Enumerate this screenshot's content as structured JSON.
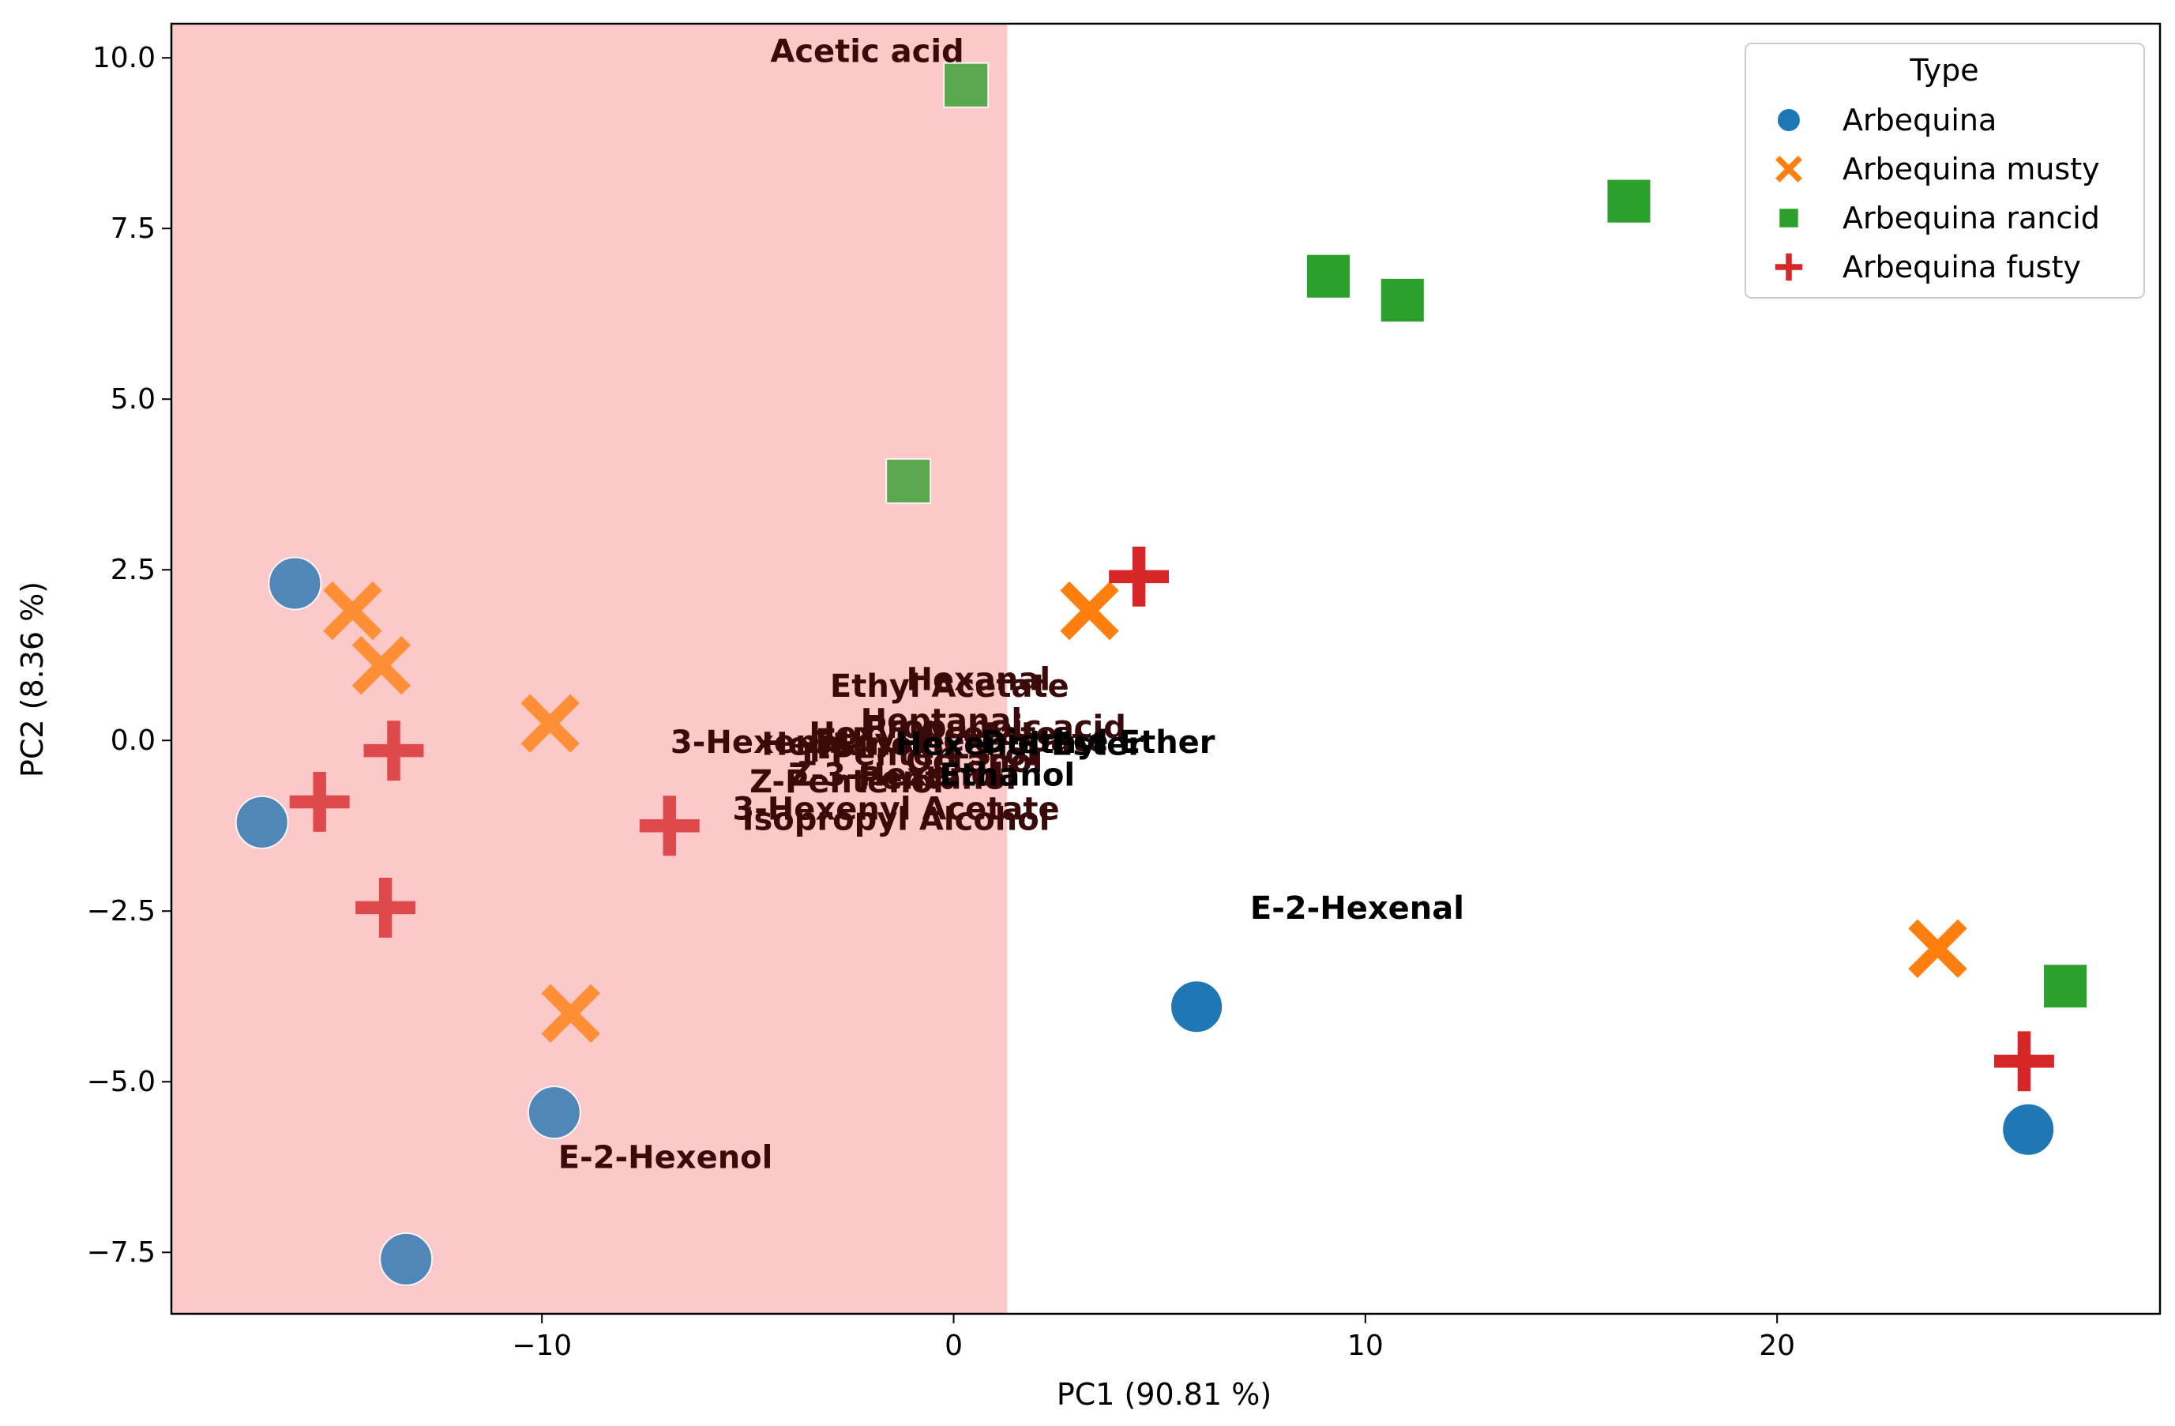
{
  "chart_data": {
    "type": "scatter",
    "title": "",
    "xlabel": "PC1 (90.81 %)",
    "ylabel": "PC2 (8.36 %)",
    "xlim": [
      -19,
      29.3
    ],
    "ylim": [
      -8.4,
      10.5
    ],
    "xticks": [
      {
        "value": -10,
        "label": "−10"
      },
      {
        "value": 0,
        "label": "0"
      },
      {
        "value": 10,
        "label": "10"
      },
      {
        "value": 20,
        "label": "20"
      }
    ],
    "yticks": [
      {
        "value": -7.5,
        "label": "−7.5"
      },
      {
        "value": -5.0,
        "label": "−5.0"
      },
      {
        "value": -2.5,
        "label": "−2.5"
      },
      {
        "value": 0.0,
        "label": "0.0"
      },
      {
        "value": 2.5,
        "label": "2.5"
      },
      {
        "value": 5.0,
        "label": "5.0"
      },
      {
        "value": 7.5,
        "label": "7.5"
      },
      {
        "value": 10.0,
        "label": "10.0"
      }
    ],
    "shaded_region": {
      "x_from": -19,
      "x_to": 1.3,
      "color": "#fbc9c9"
    },
    "legend": {
      "title": "Type",
      "position": "top-right"
    },
    "series": [
      {
        "name": "Arbequina",
        "marker": "circle",
        "color": "#1f77b4",
        "points": [
          {
            "x": -16.0,
            "y": 2.3
          },
          {
            "x": -16.8,
            "y": -1.2
          },
          {
            "x": -9.7,
            "y": -5.45
          },
          {
            "x": -13.3,
            "y": -7.6
          },
          {
            "x": 5.9,
            "y": -3.9
          },
          {
            "x": 26.1,
            "y": -5.7
          }
        ]
      },
      {
        "name": "Arbequina musty",
        "marker": "x",
        "color": "#ff7f0e",
        "points": [
          {
            "x": -14.6,
            "y": 1.9
          },
          {
            "x": -13.9,
            "y": 1.1
          },
          {
            "x": -9.8,
            "y": 0.25
          },
          {
            "x": -9.3,
            "y": -4.0
          },
          {
            "x": 3.3,
            "y": 1.9
          },
          {
            "x": 23.9,
            "y": -3.05
          }
        ]
      },
      {
        "name": "Arbequina rancid",
        "marker": "square",
        "color": "#2ca02c",
        "points": [
          {
            "x": 0.3,
            "y": 9.6
          },
          {
            "x": -1.1,
            "y": 3.8
          },
          {
            "x": 9.1,
            "y": 6.8
          },
          {
            "x": 10.9,
            "y": 6.45
          },
          {
            "x": 16.4,
            "y": 7.9
          },
          {
            "x": 27.0,
            "y": -3.6
          }
        ]
      },
      {
        "name": "Arbequina fusty",
        "marker": "plus",
        "color": "#d62728",
        "points": [
          {
            "x": -13.6,
            "y": -0.15
          },
          {
            "x": -15.4,
            "y": -0.9
          },
          {
            "x": -13.8,
            "y": -2.45
          },
          {
            "x": -6.9,
            "y": -1.25
          },
          {
            "x": 4.5,
            "y": 2.4
          },
          {
            "x": 26.0,
            "y": -4.7
          }
        ]
      }
    ],
    "annotations": [
      {
        "text": "Acetic acid",
        "x": -2.1,
        "y": 10.1
      },
      {
        "text": "Hexanal",
        "x": 0.6,
        "y": 0.9
      },
      {
        "text": "Ethyl Acetate",
        "x": -0.1,
        "y": 0.8
      },
      {
        "text": "Heptanal",
        "x": -0.3,
        "y": 0.3
      },
      {
        "text": "Hexyl Acetate",
        "x": -0.5,
        "y": 0.1
      },
      {
        "text": "Propanoic acid",
        "x": 1.0,
        "y": 0.2
      },
      {
        "text": "Ethyl Hexanoate",
        "x": 0.2,
        "y": 0.0
      },
      {
        "text": "3-Hexenal",
        "x": -4.7,
        "y": -0.02
      },
      {
        "text": "Heptanol",
        "x": -2.7,
        "y": -0.05
      },
      {
        "text": "1-Penten-3-ol",
        "x": -0.9,
        "y": -0.2
      },
      {
        "text": "Octanol",
        "x": 0.5,
        "y": -0.3
      },
      {
        "text": "Hexenol Ester",
        "x": 1.6,
        "y": -0.05
      },
      {
        "text": "Diethyl Ether",
        "x": 3.5,
        "y": -0.02
      },
      {
        "text": "Z-3-Hexenol",
        "x": -1.4,
        "y": -0.5
      },
      {
        "text": "Z-Pentenol",
        "x": -2.6,
        "y": -0.6
      },
      {
        "text": "Pentanol",
        "x": -0.4,
        "y": -0.55
      },
      {
        "text": "Ethanol",
        "x": 1.3,
        "y": -0.5
      },
      {
        "text": "3-Hexenyl Acetate",
        "x": -1.4,
        "y": -1.0
      },
      {
        "text": "Isopropyl Alcohol",
        "x": -1.4,
        "y": -1.15
      },
      {
        "text": "E-2-Hexenal",
        "x": 9.8,
        "y": -2.45
      },
      {
        "text": "E-2-Hexenol",
        "x": -7.0,
        "y": -6.1
      }
    ]
  }
}
